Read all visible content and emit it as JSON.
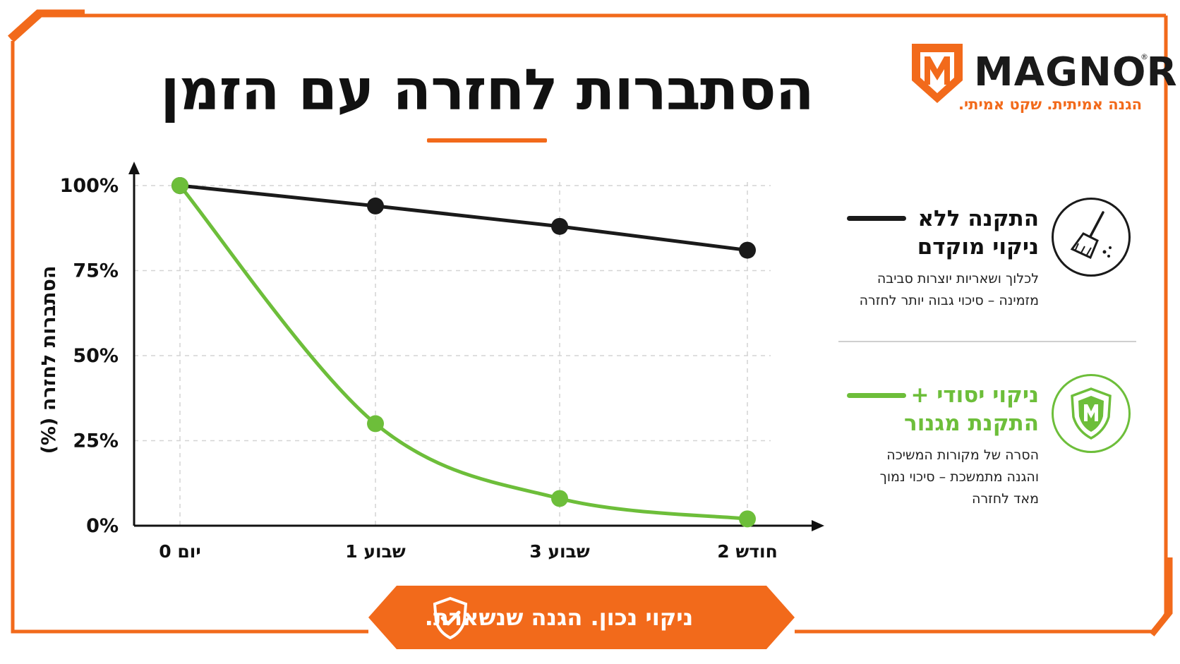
{
  "title": "הסתברות לחזרה עם הזמן",
  "brand": {
    "name": "MAGNOR",
    "registered": "®",
    "tagline": "הגנה אמיתית. שקט אמיתי.",
    "logo_letter": "M",
    "accent_color": "#F26A1B"
  },
  "legend": [
    {
      "title_line1": "התקנה ללא",
      "title_line2": "ניקוי מוקדם",
      "desc_line1": "לכלוך ושאריות יוצרות סביבה",
      "desc_line2": "מזמינה – סיכוי גבוה יותר לחזרה",
      "desc_line3": "",
      "color": "#1a1a1a",
      "icon": "broom-icon"
    },
    {
      "title_line1": "ניקוי יסודי +",
      "title_line2": "התקנת מגנור",
      "desc_line1": "הסרה של מקורות המשיכה",
      "desc_line2": "והגנה מתמשכת – סיכוי נמוך",
      "desc_line3": "מאד לחזרה",
      "color": "#6DBE3A",
      "icon": "shield-m-icon"
    }
  ],
  "banner": {
    "text": "ניקוי נכון. הגנה שנשארת.",
    "icon": "shield-check-icon"
  },
  "chart_data": {
    "type": "line",
    "title": "הסתברות לחזרה עם הזמן",
    "xlabel": "",
    "ylabel": "הסתברות לחזרה (%)",
    "categories": [
      "יום 0",
      "שבוע 1",
      "שבוע 3",
      "חודש 2"
    ],
    "y_ticks": [
      "0%",
      "25%",
      "50%",
      "75%",
      "100%"
    ],
    "ylim": [
      0,
      100
    ],
    "grid": true,
    "legend_position": "right",
    "series": [
      {
        "name": "התקנה ללא ניקוי מוקדם",
        "values": [
          100,
          94,
          88,
          81
        ],
        "color": "#1a1a1a",
        "smooth": false
      },
      {
        "name": "ניקוי יסודי + התקנת מגנור",
        "values": [
          100,
          30,
          8,
          2
        ],
        "color": "#6DBE3A",
        "smooth": true
      }
    ]
  }
}
